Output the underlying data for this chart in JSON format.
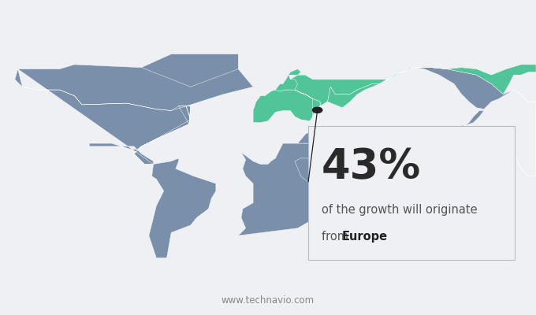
{
  "background_color": "#eef0f4",
  "map_color": "#7a90aa",
  "highlight_color": "#52c49a",
  "dot_color": "#222222",
  "line_color": "#222222",
  "box_bg": "#eef0f4",
  "percent_text": "43%",
  "desc_line1": "of the growth will originate",
  "desc_line2": "from ",
  "desc_bold": "Europe",
  "watermark": "www.technavio.com",
  "percent_fontsize": 38,
  "desc_fontsize": 10.5,
  "watermark_fontsize": 8.5,
  "ocean_color": "#eef0f4"
}
